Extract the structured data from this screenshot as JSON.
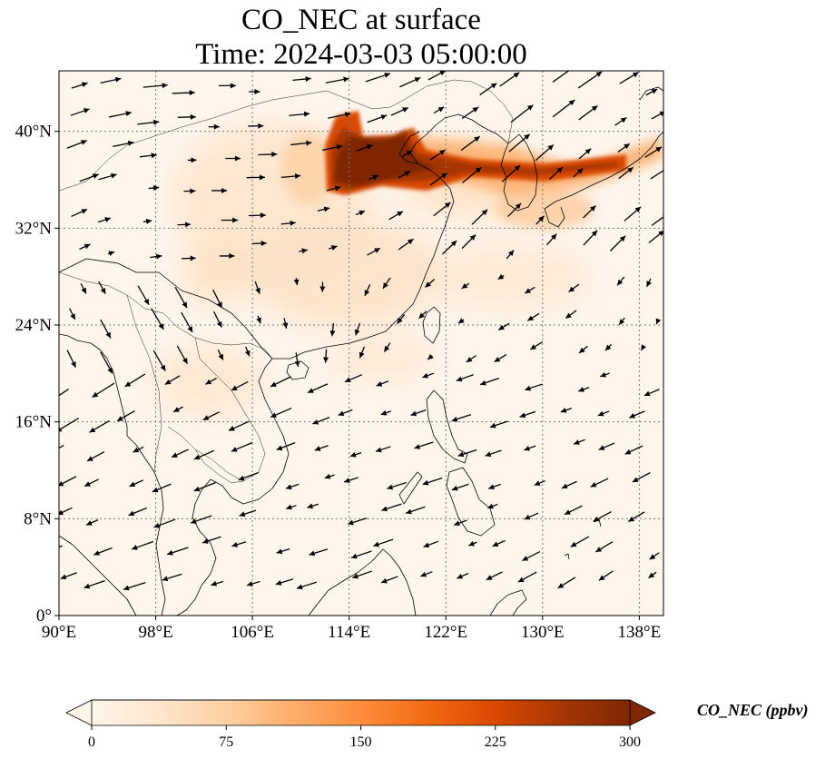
{
  "title": {
    "line1": "CO_NEC at surface",
    "line2": "Time: 2024-03-03 05:00:00"
  },
  "map": {
    "lon_range": [
      90,
      140
    ],
    "lat_range": [
      0,
      45
    ],
    "lon_ticks": [
      {
        "value": 90,
        "label": "90°E"
      },
      {
        "value": 98,
        "label": "98°E"
      },
      {
        "value": 106,
        "label": "106°E"
      },
      {
        "value": 114,
        "label": "114°E"
      },
      {
        "value": 122,
        "label": "122°E"
      },
      {
        "value": 130,
        "label": "130°E"
      },
      {
        "value": 138,
        "label": "138°E"
      }
    ],
    "lat_ticks": [
      {
        "value": 0,
        "label": "0°"
      },
      {
        "value": 8,
        "label": "8°N"
      },
      {
        "value": 16,
        "label": "16°N"
      },
      {
        "value": 24,
        "label": "24°N"
      },
      {
        "value": 32,
        "label": "32°N"
      },
      {
        "value": 40,
        "label": "40°N"
      }
    ],
    "gridlines": "dotted",
    "background_color": "#fff5eb",
    "plumes": [
      {
        "name": "North China Plain hotspot",
        "lon": 117,
        "lat": 38,
        "level_ppbv": 300
      },
      {
        "name": "Korea-Japan transport band",
        "lon": 131,
        "lat": 37,
        "level_ppbv": 200
      },
      {
        "name": "Inland China haze",
        "lon": 110,
        "lat": 31,
        "level_ppbv": 40
      }
    ]
  },
  "colorbar": {
    "label": "CO_NEC (ppbv)",
    "min": 0,
    "max": 300,
    "extend": "both",
    "colormap": [
      "#fff5eb",
      "#fee6ce",
      "#fdd0a2",
      "#fdae6b",
      "#fd8d3c",
      "#f16913",
      "#d94801",
      "#a63603",
      "#7f2704"
    ],
    "ticks": [
      {
        "value": 0,
        "label": "0"
      },
      {
        "value": 75,
        "label": "75"
      },
      {
        "value": 150,
        "label": "150"
      },
      {
        "value": 225,
        "label": "225"
      },
      {
        "value": 300,
        "label": "300"
      }
    ]
  }
}
